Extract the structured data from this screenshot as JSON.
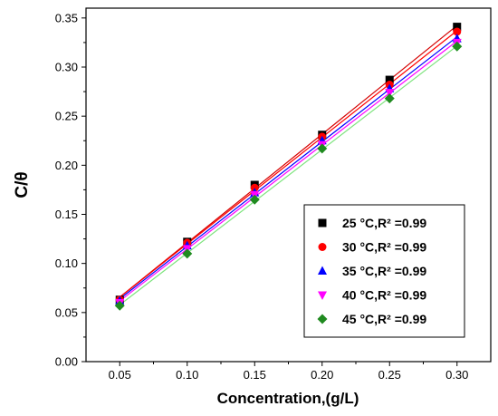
{
  "chart_data": {
    "type": "scatter",
    "xlabel": "Concentration,(g/L)",
    "ylabel": "C/θ",
    "xlim": [
      0.025,
      0.325
    ],
    "ylim": [
      0.0,
      0.36
    ],
    "xticks": [
      "0.05",
      "0.10",
      "0.15",
      "0.20",
      "0.25",
      "0.30"
    ],
    "yticks": [
      "0.00",
      "0.05",
      "0.10",
      "0.15",
      "0.20",
      "0.25",
      "0.30",
      "0.35"
    ],
    "legend_position": "bottom-right",
    "grid": false,
    "x": [
      0.05,
      0.1,
      0.15,
      0.2,
      0.25,
      0.3
    ],
    "series": [
      {
        "name": "25 °C,R² =0.99",
        "marker": "square",
        "color": "#000000",
        "line_color": "#d40000",
        "values": [
          0.063,
          0.122,
          0.18,
          0.231,
          0.287,
          0.341
        ]
      },
      {
        "name": "30 °C,R² =0.99",
        "marker": "circle",
        "color": "#ff0000",
        "line_color": "#ff0000",
        "values": [
          0.063,
          0.121,
          0.177,
          0.229,
          0.282,
          0.336
        ]
      },
      {
        "name": "35 °C,R² =0.99",
        "marker": "triangle-up",
        "color": "#0000ff",
        "line_color": "#0000ff",
        "values": [
          0.062,
          0.118,
          0.172,
          0.225,
          0.278,
          0.329
        ]
      },
      {
        "name": "40 °C,R² =0.99",
        "marker": "triangle-down",
        "color": "#ff00ff",
        "line_color": "#ff00ff",
        "values": [
          0.06,
          0.115,
          0.17,
          0.221,
          0.274,
          0.325
        ]
      },
      {
        "name": "45 °C,R² =0.99",
        "marker": "diamond",
        "color": "#1f8a1f",
        "line_color": "#7de37d",
        "values": [
          0.057,
          0.11,
          0.165,
          0.217,
          0.268,
          0.321
        ]
      }
    ]
  }
}
